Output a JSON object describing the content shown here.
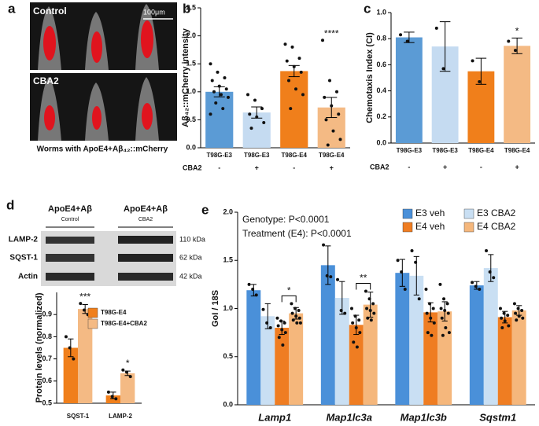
{
  "panel_labels": [
    "a",
    "b",
    "c",
    "d",
    "e"
  ],
  "panel_a": {
    "rows": [
      "Control",
      "CBA2"
    ],
    "scale_bar": "100μm",
    "caption": "Worms with ApoE4+Aβ₄₂::mCherry"
  },
  "panel_d_blot": {
    "groups": [
      {
        "title": "ApoE4+Aβ",
        "condition": "Control"
      },
      {
        "title": "ApoE4+Aβ",
        "condition": "CBA2"
      }
    ],
    "bands": [
      {
        "name": "LAMP-2",
        "size": "110 kDa"
      },
      {
        "name": "SQST-1",
        "size": "62 kDa"
      },
      {
        "name": "Actin",
        "size": "42 kDa"
      }
    ]
  },
  "chart_data": [
    {
      "type": "bar",
      "ylabel": "Aβ₄₂::mCherry intensity",
      "categories": [
        "T98G-E3",
        "T98G-E3",
        "T98G-E4",
        "T98G-E4"
      ],
      "row_label": "CBA2",
      "treatment": [
        "-",
        "+",
        "-",
        "+"
      ],
      "values": [
        1.0,
        0.63,
        1.37,
        0.72
      ],
      "errors": [
        0.09,
        0.1,
        0.1,
        0.18
      ],
      "colors": [
        "#5b9bd5",
        "#c5dbf1",
        "#f07f1b",
        "#f4ba84"
      ],
      "points": [
        [
          1.5,
          1.35,
          1.25,
          1.2,
          1.1,
          1.05,
          1.0,
          0.95,
          0.9,
          0.8,
          0.7,
          0.6
        ],
        [
          0.95,
          0.85,
          0.7,
          0.6,
          0.55,
          0.45,
          0.35
        ],
        [
          1.85,
          1.8,
          1.6,
          1.55,
          1.45,
          1.35,
          1.2,
          1.05,
          0.95,
          0.7
        ],
        [
          1.92,
          1.2,
          1.0,
          0.9,
          0.75,
          0.6,
          0.5,
          0.3,
          0.15,
          0.05
        ]
      ],
      "annotations": [
        null,
        null,
        null,
        "****"
      ],
      "ylim": [
        0,
        2.5
      ],
      "yticks": [
        {
          "value": 0,
          "label": "0.0"
        },
        0.5,
        {
          "value": 1,
          "label": "1.0"
        },
        1.5,
        {
          "value": 2,
          "label": "2.0"
        },
        2.5
      ]
    },
    {
      "type": "bar",
      "ylabel": "Chemotaxis Index (CI)",
      "categories": [
        "T98G-E3",
        "T98G-E3",
        "T98G-E4",
        "T98G-E4"
      ],
      "row_label": "CBA2",
      "treatment": [
        "-",
        "+",
        "-",
        "+"
      ],
      "values": [
        0.81,
        0.74,
        0.55,
        0.745
      ],
      "errors": [
        0.04,
        0.19,
        0.1,
        0.06
      ],
      "colors": [
        "#5b9bd5",
        "#c5dbf1",
        "#f07f1b",
        "#f4ba84"
      ],
      "points": [
        [
          0.83,
          0.78
        ],
        [
          0.88,
          0.57
        ],
        [
          0.63,
          0.47
        ],
        [
          0.78,
          0.71
        ]
      ],
      "annotations": [
        null,
        null,
        null,
        "*"
      ],
      "ylim": [
        0,
        1.0
      ],
      "yticks": [
        {
          "value": 0,
          "label": "0.0"
        },
        0.2,
        0.4,
        0.6,
        0.8,
        {
          "value": 1,
          "label": "1.0"
        }
      ]
    },
    {
      "type": "bar",
      "ylabel": "Protein levels (normalized)",
      "categories": [
        "SQST-1",
        "LAMP-2"
      ],
      "legend": "upper-right",
      "series": [
        {
          "name": "T98G-E4",
          "color": "#f07f1b",
          "values": [
            0.75,
            0.535
          ],
          "errors": [
            0.04,
            0.015
          ],
          "points": [
            [
              0.8,
              0.75,
              0.7
            ],
            [
              0.55,
              0.53,
              0.52
            ]
          ]
        },
        {
          "name": "T98G-E4+CBA2",
          "color": "#f4ba84",
          "values": [
            0.925,
            0.635
          ],
          "errors": [
            0.02,
            0.01
          ],
          "points": [
            [
              0.95,
              0.92,
              0.9
            ],
            [
              0.65,
              0.64,
              0.62
            ]
          ],
          "annotations": [
            "***",
            "*"
          ]
        }
      ],
      "ylim": [
        0.5,
        1.0
      ],
      "yticks": [
        0.5,
        0.6,
        0.7,
        0.8,
        0.9
      ]
    },
    {
      "type": "bar",
      "ylabel": "GoI / 18S",
      "categories": [
        "Lamp1",
        "Map1lc3a",
        "Map1lc3b",
        "Sqstm1"
      ],
      "legend": "upper-right",
      "annotations": [
        "Genotype: P<0.0001",
        "Treatment (E4): P<0.0001"
      ],
      "brackets": [
        "*",
        "**",
        null,
        null
      ],
      "series": [
        {
          "name": "E3 veh",
          "color": "#4a90d9",
          "values": [
            1.19,
            1.45,
            1.37,
            1.24
          ],
          "errors": [
            0.06,
            0.2,
            0.14,
            0.04
          ],
          "points": [
            [
              1.25,
              1.2,
              1.14
            ],
            [
              1.66,
              1.34,
              1.33
            ],
            [
              1.5,
              1.38,
              1.2
            ],
            [
              1.27,
              1.23,
              1.2
            ]
          ]
        },
        {
          "name": "E3 CBA2",
          "color": "#c9dff3",
          "values": [
            0.92,
            1.11,
            1.34,
            1.42
          ],
          "errors": [
            0.13,
            0.17,
            0.2,
            0.14
          ],
          "points": [
            [
              0.99,
              0.85,
              0.8
            ],
            [
              1.3,
              0.98,
              0.95
            ],
            [
              1.6,
              1.48,
              1.1
            ],
            [
              1.6,
              1.38,
              1.32
            ]
          ]
        },
        {
          "name": "E4 veh",
          "color": "#ef7d22",
          "values": [
            0.8,
            0.83,
            0.96,
            0.91
          ],
          "errors": [
            0.07,
            0.1,
            0.1,
            0.06
          ],
          "points": [
            [
              0.9,
              0.87,
              0.85,
              0.82,
              0.78,
              0.75,
              0.7,
              0.62
            ],
            [
              1.0,
              0.92,
              0.88,
              0.85,
              0.8,
              0.75,
              0.65,
              0.6
            ],
            [
              1.2,
              1.05,
              1.0,
              0.95,
              0.9,
              0.85,
              0.75,
              0.72
            ],
            [
              1.0,
              0.95,
              0.93,
              0.9,
              0.87,
              0.82,
              0.8
            ]
          ]
        },
        {
          "name": "E4 CBA2",
          "color": "#f5b77c",
          "values": [
            0.95,
            1.04,
            0.97,
            0.98
          ],
          "errors": [
            0.06,
            0.13,
            0.1,
            0.05
          ],
          "points": [
            [
              1.05,
              1.0,
              0.98,
              0.95,
              0.92,
              0.9,
              0.88,
              0.85,
              0.85
            ],
            [
              1.18,
              1.1,
              1.05,
              1.0,
              0.98,
              0.95,
              0.9,
              0.88
            ],
            [
              1.25,
              1.1,
              1.05,
              1.0,
              0.98,
              0.95,
              0.9,
              0.8,
              0.75,
              0.72
            ],
            [
              1.05,
              1.0,
              0.98,
              0.95,
              0.92,
              0.9,
              0.88
            ]
          ]
        }
      ],
      "ylim": [
        0,
        2.0
      ],
      "yticks": [
        {
          "value": 0,
          "label": "0.0"
        },
        0.5,
        {
          "value": 1,
          "label": "1.0"
        },
        1.5,
        {
          "value": 2,
          "label": "2.0"
        }
      ]
    }
  ]
}
